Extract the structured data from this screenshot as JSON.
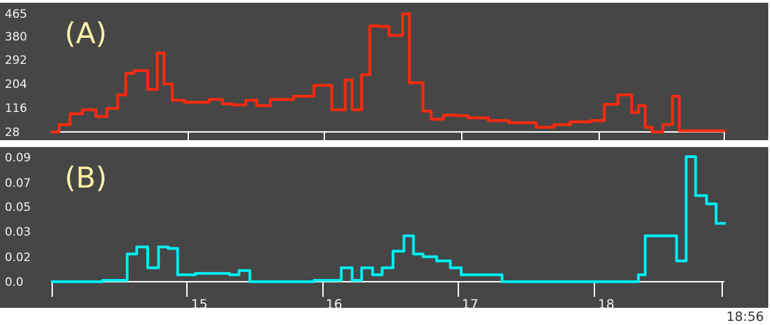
{
  "chart_data": [
    {
      "type": "line",
      "step": true,
      "panel_label": "(A)",
      "title": "",
      "xlabel": "",
      "ylabel": "",
      "background": "#464646",
      "line_color": "#ff2a0e",
      "xlim": [
        14.0,
        18.93
      ],
      "ylim": [
        28,
        465
      ],
      "yticks": [
        "465",
        "380",
        "292",
        "204",
        "116",
        "28"
      ],
      "grid": false,
      "series": [
        {
          "x": [
            14.0,
            14.05,
            14.13,
            14.22,
            14.32,
            14.4,
            14.48,
            14.54,
            14.6,
            14.7,
            14.77,
            14.82,
            14.88,
            14.97,
            15.15,
            15.25,
            15.32,
            15.42,
            15.5,
            15.6,
            15.67,
            15.77,
            15.92,
            15.98,
            16.05,
            16.15,
            16.2,
            16.27,
            16.33,
            16.4,
            16.47,
            16.57,
            16.62,
            16.72,
            16.78,
            16.87,
            16.97,
            17.05,
            17.2,
            17.35,
            17.55,
            17.68,
            17.8,
            17.95,
            18.05,
            18.15,
            18.25,
            18.3,
            18.35,
            18.4,
            18.48,
            18.55,
            18.6,
            18.65,
            18.72,
            18.77,
            18.82,
            18.93
          ],
          "y": [
            28,
            55,
            95,
            110,
            85,
            115,
            165,
            245,
            255,
            185,
            320,
            205,
            145,
            138,
            148,
            132,
            128,
            145,
            125,
            148,
            148,
            160,
            200,
            200,
            110,
            220,
            110,
            240,
            420,
            418,
            385,
            465,
            210,
            105,
            75,
            90,
            88,
            80,
            70,
            62,
            45,
            55,
            65,
            70,
            130,
            165,
            100,
            125,
            45,
            28,
            55,
            160,
            32,
            32,
            32,
            32,
            32,
            32
          ]
        }
      ]
    },
    {
      "type": "line",
      "step": true,
      "panel_label": "(B)",
      "title": "",
      "xlabel": "",
      "ylabel": "",
      "background": "#464646",
      "line_color": "#00eef2",
      "xlim": [
        14.0,
        18.93
      ],
      "ylim": [
        0.0,
        0.09
      ],
      "yticks": [
        "0.09",
        "0.07",
        "0.05",
        "0.03",
        "0.02",
        "0.0"
      ],
      "xticks": [
        "15",
        "16",
        "17",
        "18"
      ],
      "x_end_label": "18:56",
      "grid": false,
      "series": [
        {
          "x": [
            14.0,
            14.37,
            14.55,
            14.62,
            14.7,
            14.78,
            14.85,
            14.92,
            15.05,
            15.3,
            15.37,
            15.45,
            15.92,
            16.05,
            16.12,
            16.2,
            16.27,
            16.35,
            16.42,
            16.5,
            16.58,
            16.65,
            16.72,
            16.82,
            16.92,
            17.0,
            17.3,
            18.0,
            18.3,
            18.35,
            18.5,
            18.58,
            18.65,
            18.72,
            18.8,
            18.87
          ],
          "y": [
            0.0,
            0.001,
            0.02,
            0.025,
            0.01,
            0.025,
            0.024,
            0.005,
            0.006,
            0.005,
            0.008,
            0.0,
            0.001,
            0.001,
            0.01,
            0.001,
            0.01,
            0.005,
            0.01,
            0.022,
            0.033,
            0.02,
            0.018,
            0.015,
            0.01,
            0.005,
            0.0,
            0.0,
            0.005,
            0.033,
            0.033,
            0.015,
            0.09,
            0.062,
            0.056,
            0.042
          ]
        }
      ]
    }
  ]
}
